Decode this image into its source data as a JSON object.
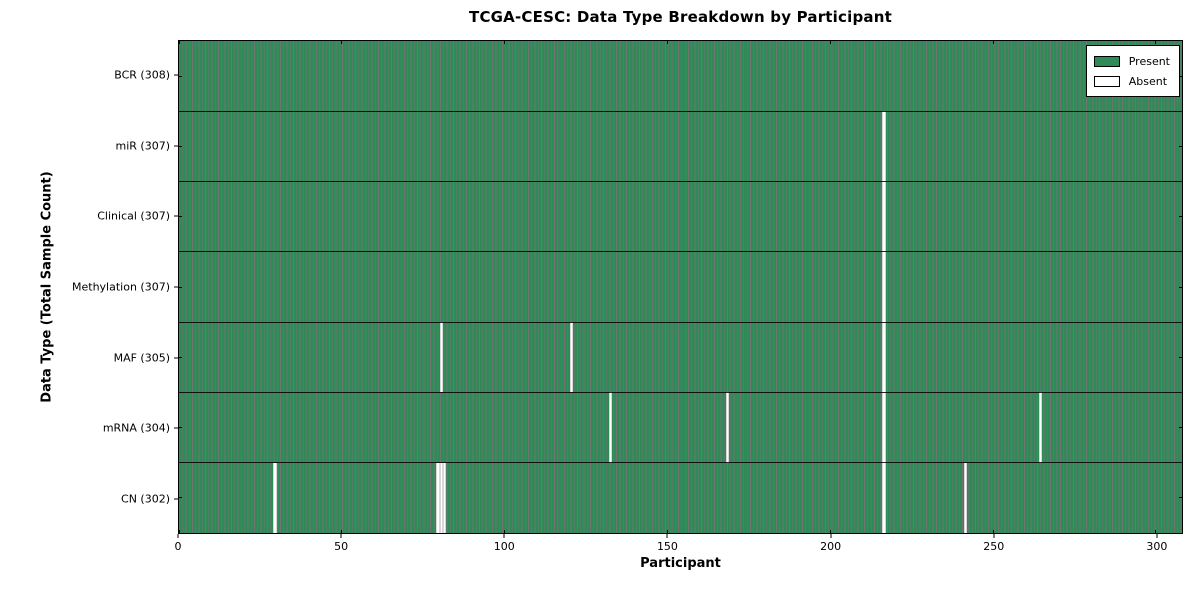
{
  "chart_data": {
    "type": "heatmap",
    "title": "TCGA-CESC: Data Type Breakdown by Participant",
    "xlabel": "Participant",
    "ylabel": "Data Type (Total Sample Count)",
    "x_ticks": [
      0,
      50,
      100,
      150,
      200,
      250,
      300
    ],
    "x_range": [
      0,
      308
    ],
    "n_participants": 308,
    "grid": false,
    "colors": {
      "present": "#2e8b57",
      "absent": "#ffffff",
      "edge": "#000000"
    },
    "legend": {
      "position": "upper right",
      "items": [
        {
          "label": "Present",
          "color": "#2e8b57"
        },
        {
          "label": "Absent",
          "color": "#ffffff"
        }
      ]
    },
    "rows": [
      {
        "label": "BCR (308)",
        "total": 308,
        "absent_participants": []
      },
      {
        "label": "miR (307)",
        "total": 307,
        "absent_participants": [
          216
        ]
      },
      {
        "label": "Clinical (307)",
        "total": 307,
        "absent_participants": [
          216
        ]
      },
      {
        "label": "Methylation (307)",
        "total": 307,
        "absent_participants": [
          216
        ]
      },
      {
        "label": "MAF (305)",
        "total": 305,
        "absent_participants": [
          80,
          120,
          216
        ]
      },
      {
        "label": "mRNA (304)",
        "total": 304,
        "absent_participants": [
          132,
          168,
          216,
          264
        ]
      },
      {
        "label": "CN (302)",
        "total": 302,
        "absent_participants": [
          29,
          79,
          80,
          81,
          216,
          241
        ]
      }
    ]
  }
}
